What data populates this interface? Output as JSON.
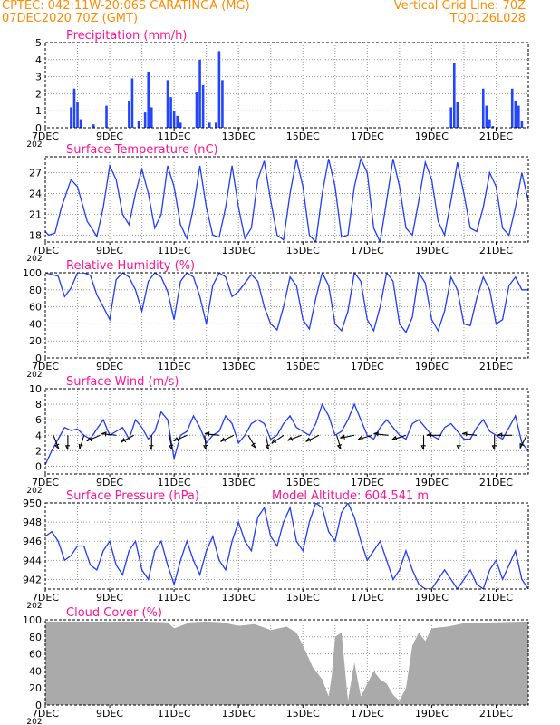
{
  "header": {
    "line1_left": "CPTEC:   042:11W-20:06S   CARATINGA (MG)",
    "line2_left": "07DEC2020 70Z (GMT)",
    "line1_right": "Vertical Grid Line: 70Z",
    "line2_right": "TQ0126L028",
    "color": "#ff8c00"
  },
  "colors": {
    "title": "#ff1493",
    "line": "#1f3bff",
    "bar": "#2244ff",
    "cloud": "#aaaaaa",
    "arrow": "#000000"
  },
  "time_axis": {
    "start_day": 7,
    "end_day": 22,
    "label_days": [
      7,
      9,
      11,
      13,
      15,
      17,
      19,
      21
    ],
    "labels": [
      "7DEC",
      "9DEC",
      "11DEC",
      "13DEC",
      "15DEC",
      "17DEC",
      "19DEC",
      "21DEC"
    ],
    "under_label": "202"
  },
  "chart_data": [
    {
      "type": "bar",
      "title": "Precipitation (mm/h)",
      "ylim": [
        0,
        5
      ],
      "yticks": [
        0,
        1,
        2,
        3,
        4,
        5
      ],
      "series": [
        {
          "x": [
            7.8,
            7.9,
            8.0,
            8.1,
            8.5,
            8.9,
            9.6,
            9.7,
            9.9,
            10.1,
            10.2,
            10.3,
            10.8,
            10.9,
            11.0,
            11.1,
            11.2,
            11.7,
            11.8,
            11.9,
            12.1,
            12.3,
            12.4,
            12.5,
            19.6,
            19.7,
            19.8,
            20.6,
            20.7,
            20.8,
            20.9,
            21.5,
            21.6,
            21.7,
            21.8
          ],
          "y": [
            1.2,
            2.3,
            1.5,
            0.5,
            0.2,
            1.3,
            1.6,
            2.9,
            0.4,
            0.9,
            3.3,
            1.2,
            2.8,
            1.8,
            1.0,
            0.7,
            0.3,
            2.1,
            4.0,
            2.5,
            0.3,
            0.3,
            4.5,
            2.8,
            1.2,
            3.8,
            1.5,
            2.3,
            1.3,
            0.5,
            0.1,
            2.3,
            1.6,
            1.3,
            0.4
          ]
        }
      ]
    },
    {
      "type": "line",
      "title": "Surface Temperature (nC)",
      "ylim": [
        17,
        29.3
      ],
      "yticks": [
        18,
        21,
        24,
        27
      ],
      "series": [
        {
          "x": [
            7.0,
            7.1,
            7.3,
            7.5,
            7.8,
            8.0,
            8.3,
            8.6,
            8.8,
            9.0,
            9.2,
            9.4,
            9.6,
            9.8,
            10.0,
            10.2,
            10.4,
            10.6,
            10.8,
            11.0,
            11.2,
            11.4,
            11.6,
            11.8,
            12.0,
            12.2,
            12.4,
            12.6,
            12.8,
            13.0,
            13.2,
            13.4,
            13.6,
            13.8,
            14.0,
            14.2,
            14.4,
            14.6,
            14.8,
            15.0,
            15.2,
            15.4,
            15.6,
            15.8,
            16.0,
            16.2,
            16.4,
            16.6,
            16.8,
            17.0,
            17.2,
            17.4,
            17.6,
            17.8,
            18.0,
            18.2,
            18.4,
            18.6,
            18.8,
            19.0,
            19.2,
            19.4,
            19.6,
            19.8,
            20.0,
            20.2,
            20.4,
            20.6,
            20.8,
            21.0,
            21.2,
            21.4,
            21.6,
            21.8,
            22.0
          ],
          "y": [
            18.5,
            18.0,
            18.3,
            22.0,
            26.0,
            25.0,
            20.0,
            17.8,
            22.0,
            28.0,
            26.0,
            21.0,
            19.5,
            24.0,
            27.5,
            24.0,
            19.0,
            21.0,
            28.0,
            25.0,
            19.5,
            17.5,
            22.0,
            28.0,
            22.0,
            18.0,
            17.7,
            22.0,
            28.0,
            22.0,
            17.5,
            19.0,
            26.0,
            28.7,
            23.0,
            18.0,
            17.3,
            24.0,
            29.0,
            25.0,
            18.0,
            17.0,
            24.0,
            29.0,
            25.0,
            17.7,
            18.0,
            25.0,
            29.0,
            27.0,
            19.0,
            17.0,
            23.0,
            29.0,
            25.0,
            19.0,
            18.0,
            23.0,
            28.5,
            26.0,
            20.0,
            18.0,
            23.0,
            28.5,
            24.0,
            19.0,
            18.5,
            22.0,
            27.0,
            25.0,
            19.0,
            18.0,
            22.0,
            27.0,
            23.0
          ]
        }
      ]
    },
    {
      "type": "line",
      "title": "Relative Humidity (%)",
      "ylim": [
        0,
        100
      ],
      "yticks": [
        0,
        20,
        40,
        60,
        80,
        100
      ],
      "series": [
        {
          "x": [
            7.0,
            7.2,
            7.4,
            7.6,
            7.8,
            8.0,
            8.2,
            8.4,
            8.6,
            8.8,
            9.0,
            9.2,
            9.4,
            9.6,
            9.8,
            10.0,
            10.2,
            10.4,
            10.6,
            10.8,
            11.0,
            11.2,
            11.4,
            11.6,
            11.8,
            12.0,
            12.2,
            12.4,
            12.6,
            12.8,
            13.0,
            13.2,
            13.4,
            13.6,
            13.8,
            14.0,
            14.2,
            14.4,
            14.6,
            14.8,
            15.0,
            15.2,
            15.4,
            15.6,
            15.8,
            16.0,
            16.2,
            16.4,
            16.6,
            16.8,
            17.0,
            17.2,
            17.4,
            17.6,
            17.8,
            18.0,
            18.2,
            18.4,
            18.6,
            18.8,
            19.0,
            19.2,
            19.4,
            19.6,
            19.8,
            20.0,
            20.2,
            20.4,
            20.6,
            20.8,
            21.0,
            21.2,
            21.4,
            21.6,
            21.8,
            22.0
          ],
          "y": [
            100,
            98,
            96,
            72,
            82,
            100,
            100,
            97,
            74,
            60,
            45,
            92,
            100,
            95,
            80,
            55,
            90,
            100,
            95,
            78,
            45,
            90,
            100,
            95,
            72,
            40,
            85,
            100,
            95,
            72,
            78,
            88,
            98,
            90,
            60,
            40,
            33,
            60,
            95,
            85,
            45,
            34,
            70,
            100,
            85,
            40,
            32,
            55,
            100,
            90,
            45,
            32,
            60,
            100,
            90,
            40,
            30,
            48,
            100,
            88,
            45,
            32,
            55,
            95,
            80,
            40,
            38,
            70,
            95,
            80,
            40,
            45,
            85,
            95,
            80,
            80
          ]
        }
      ]
    },
    {
      "type": "line",
      "title": "Surface Wind (m/s)",
      "ylim": [
        -1,
        10
      ],
      "yticks": [
        0,
        2,
        4,
        6,
        8,
        10
      ],
      "series": [
        {
          "x": [
            7.0,
            7.2,
            7.4,
            7.6,
            7.8,
            8.0,
            8.2,
            8.4,
            8.6,
            8.8,
            9.0,
            9.2,
            9.4,
            9.6,
            9.8,
            10.0,
            10.2,
            10.4,
            10.6,
            10.8,
            11.0,
            11.2,
            11.4,
            11.6,
            11.8,
            12.0,
            12.2,
            12.4,
            12.6,
            12.8,
            13.0,
            13.2,
            13.4,
            13.6,
            13.8,
            14.0,
            14.2,
            14.4,
            14.6,
            14.8,
            15.0,
            15.2,
            15.4,
            15.6,
            15.8,
            16.0,
            16.2,
            16.4,
            16.6,
            16.8,
            17.0,
            17.2,
            17.4,
            17.6,
            17.8,
            18.0,
            18.2,
            18.4,
            18.6,
            18.8,
            19.0,
            19.2,
            19.4,
            19.6,
            19.8,
            20.0,
            20.2,
            20.4,
            20.6,
            20.8,
            21.0,
            21.2,
            21.4,
            21.6,
            21.8,
            22.0
          ],
          "y": [
            0.2,
            2.0,
            3.5,
            5.0,
            4.6,
            4.8,
            4.0,
            3.5,
            4.8,
            6.0,
            4.0,
            4.5,
            5.0,
            3.5,
            6.0,
            5.0,
            3.5,
            4.5,
            7.0,
            6.0,
            1.0,
            4.0,
            4.5,
            6.5,
            5.0,
            3.0,
            4.0,
            4.5,
            6.5,
            5.5,
            3.0,
            4.0,
            5.5,
            6.0,
            5.5,
            3.5,
            4.0,
            5.5,
            6.5,
            5.0,
            4.5,
            4.0,
            5.5,
            8.0,
            6.5,
            4.0,
            4.5,
            6.0,
            8.0,
            6.0,
            4.0,
            3.5,
            5.0,
            6.0,
            5.0,
            4.0,
            3.5,
            5.5,
            6.0,
            5.0,
            4.0,
            3.5,
            5.0,
            5.5,
            4.5,
            3.5,
            3.5,
            5.0,
            6.0,
            4.5,
            4.0,
            3.5,
            5.0,
            6.5,
            3.0,
            2.0
          ]
        }
      ],
      "vectors_x": [
        7.25,
        7.7,
        8.2,
        8.7,
        9.2,
        9.75,
        10.3,
        10.85,
        11.4,
        11.95,
        12.4,
        12.85,
        13.3,
        13.85,
        14.4,
        14.95,
        15.5,
        16.05,
        16.6,
        17.15,
        17.65,
        18.2,
        18.75,
        19.3,
        19.85,
        20.4,
        20.95,
        21.5,
        21.95
      ],
      "vectors_dir": [
        [
          0.4,
          1
        ],
        [
          0,
          1
        ],
        [
          -0.3,
          1
        ],
        [
          -0.9,
          0.4
        ],
        [
          -1,
          -0.1
        ],
        [
          -0.9,
          0.5
        ],
        [
          0,
          1
        ],
        [
          0.2,
          1
        ],
        [
          -0.9,
          0.4
        ],
        [
          0.1,
          1
        ],
        [
          -1,
          -0.1
        ],
        [
          -1,
          0.5
        ],
        [
          0.6,
          1
        ],
        [
          0.2,
          1
        ],
        [
          -1,
          0.7
        ],
        [
          -1,
          0.4
        ],
        [
          -1,
          0.5
        ],
        [
          0.3,
          1
        ],
        [
          -1,
          0.2
        ],
        [
          -1,
          0.3
        ],
        [
          -1,
          -0.1
        ],
        [
          -0.9,
          0.3
        ],
        [
          0,
          1
        ],
        [
          -1,
          0
        ],
        [
          0,
          1
        ],
        [
          -1,
          -0.1
        ],
        [
          0,
          1
        ],
        [
          -1,
          0
        ],
        [
          -0.5,
          1
        ]
      ]
    },
    {
      "type": "line",
      "title": "Surface Pressure (hPa)",
      "subtitle": "Model Altitude: 604.541  m",
      "ylim": [
        941,
        950
      ],
      "yticks": [
        942,
        944,
        946,
        948,
        950
      ],
      "series": [
        {
          "x": [
            7.0,
            7.2,
            7.4,
            7.6,
            7.8,
            8.0,
            8.2,
            8.4,
            8.6,
            8.8,
            9.0,
            9.2,
            9.4,
            9.6,
            9.8,
            10.0,
            10.2,
            10.4,
            10.6,
            10.8,
            11.0,
            11.2,
            11.4,
            11.6,
            11.8,
            12.0,
            12.2,
            12.4,
            12.6,
            12.8,
            13.0,
            13.2,
            13.4,
            13.6,
            13.8,
            14.0,
            14.2,
            14.4,
            14.6,
            14.8,
            15.0,
            15.2,
            15.4,
            15.6,
            15.8,
            16.0,
            16.2,
            16.4,
            16.6,
            16.8,
            17.0,
            17.2,
            17.4,
            17.6,
            17.8,
            18.0,
            18.2,
            18.4,
            18.6,
            18.8,
            19.0,
            19.2,
            19.4,
            19.6,
            19.8,
            20.0,
            20.2,
            20.4,
            20.6,
            20.8,
            21.0,
            21.2,
            21.4,
            21.6,
            21.8,
            22.0
          ],
          "y": [
            946.5,
            947.0,
            946.0,
            944.0,
            944.5,
            945.5,
            945.5,
            943.5,
            943.0,
            945.0,
            946.0,
            943.5,
            942.5,
            945.0,
            946.0,
            943.0,
            942.0,
            945.0,
            946.0,
            943.5,
            941.5,
            944.0,
            946.0,
            944.0,
            942.5,
            945.0,
            946.5,
            944.0,
            943.0,
            946.0,
            948.0,
            946.0,
            945.0,
            948.5,
            949.5,
            946.5,
            945.5,
            948.0,
            949.5,
            946.0,
            945.0,
            948.0,
            950.0,
            949.5,
            947.0,
            946.0,
            949.0,
            950.0,
            948.5,
            946.0,
            944.0,
            945.0,
            946.0,
            944.0,
            942.0,
            943.0,
            945.0,
            943.0,
            941.5,
            941.0,
            941.0,
            942.0,
            943.0,
            942.0,
            941.0,
            942.0,
            943.0,
            941.5,
            941.0,
            943.0,
            944.0,
            942.0,
            943.5,
            945.0,
            942.0,
            941.0
          ]
        }
      ]
    },
    {
      "type": "area",
      "title": "Cloud Cover (%)",
      "ylim": [
        0,
        100
      ],
      "yticks": [
        0,
        20,
        40,
        60,
        80,
        100
      ],
      "series": [
        {
          "x": [
            7.0,
            8.0,
            9.0,
            10.0,
            10.8,
            11.0,
            11.5,
            12.0,
            12.5,
            13.0,
            13.5,
            14.0,
            14.5,
            14.8,
            15.0,
            15.3,
            15.6,
            15.8,
            15.9,
            16.0,
            16.2,
            16.4,
            16.6,
            16.8,
            17.0,
            17.2,
            17.4,
            17.6,
            17.8,
            18.0,
            18.2,
            18.4,
            18.6,
            18.8,
            19.0,
            19.5,
            20.0,
            21.0,
            22.0
          ],
          "y": [
            98,
            98,
            98,
            98,
            97,
            90,
            97,
            98,
            97,
            93,
            95,
            88,
            92,
            85,
            70,
            45,
            30,
            10,
            35,
            80,
            85,
            5,
            50,
            10,
            25,
            40,
            30,
            25,
            12,
            5,
            20,
            70,
            85,
            75,
            90,
            92,
            96,
            97,
            98
          ]
        }
      ]
    }
  ]
}
